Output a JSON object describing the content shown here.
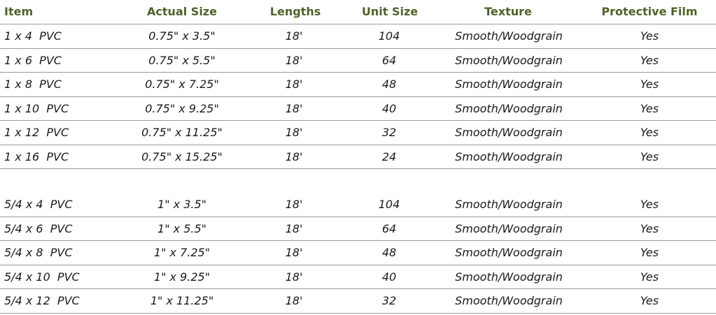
{
  "table": {
    "headers": {
      "item": "Item",
      "actual_size": "Actual Size",
      "lengths": "Lengths",
      "unit_size": "Unit Size",
      "texture": "Texture",
      "protective_film": "Protective Film"
    },
    "group1": [
      {
        "item": "1 x 4  PVC",
        "actual_size": "0.75\" x 3.5\"",
        "lengths": "18'",
        "unit_size": "104",
        "texture": "Smooth/Woodgrain",
        "film": "Yes"
      },
      {
        "item": "1 x 6  PVC",
        "actual_size": "0.75\" x 5.5\"",
        "lengths": "18'",
        "unit_size": "64",
        "texture": "Smooth/Woodgrain",
        "film": "Yes"
      },
      {
        "item": "1 x 8  PVC",
        "actual_size": "0.75\" x 7.25\"",
        "lengths": "18'",
        "unit_size": "48",
        "texture": "Smooth/Woodgrain",
        "film": "Yes"
      },
      {
        "item": "1 x 10  PVC",
        "actual_size": "0.75\" x 9.25\"",
        "lengths": "18'",
        "unit_size": "40",
        "texture": "Smooth/Woodgrain",
        "film": "Yes"
      },
      {
        "item": "1 x 12  PVC",
        "actual_size": "0.75\" x 11.25\"",
        "lengths": "18'",
        "unit_size": "32",
        "texture": "Smooth/Woodgrain",
        "film": "Yes"
      },
      {
        "item": "1 x 16  PVC",
        "actual_size": "0.75\" x 15.25\"",
        "lengths": "18'",
        "unit_size": "24",
        "texture": "Smooth/Woodgrain",
        "film": "Yes"
      }
    ],
    "group2": [
      {
        "item": "5/4 x 4  PVC",
        "actual_size": "1\" x 3.5\"",
        "lengths": "18'",
        "unit_size": "104",
        "texture": "Smooth/Woodgrain",
        "film": "Yes"
      },
      {
        "item": "5/4 x 6  PVC",
        "actual_size": "1\" x 5.5\"",
        "lengths": "18'",
        "unit_size": "64",
        "texture": "Smooth/Woodgrain",
        "film": "Yes"
      },
      {
        "item": "5/4 x 8  PVC",
        "actual_size": "1\" x 7.25\"",
        "lengths": "18'",
        "unit_size": "48",
        "texture": "Smooth/Woodgrain",
        "film": "Yes"
      },
      {
        "item": "5/4 x 10  PVC",
        "actual_size": "1\" x 9.25\"",
        "lengths": "18'",
        "unit_size": "40",
        "texture": "Smooth/Woodgrain",
        "film": "Yes"
      },
      {
        "item": "5/4 x 12  PVC",
        "actual_size": "1\" x 11.25\"",
        "lengths": "18'",
        "unit_size": "32",
        "texture": "Smooth/Woodgrain",
        "film": "Yes"
      }
    ]
  },
  "colors": {
    "header_text": "#4f6228",
    "body_text": "#1a1a1a",
    "rule": "#9a9a9a"
  }
}
